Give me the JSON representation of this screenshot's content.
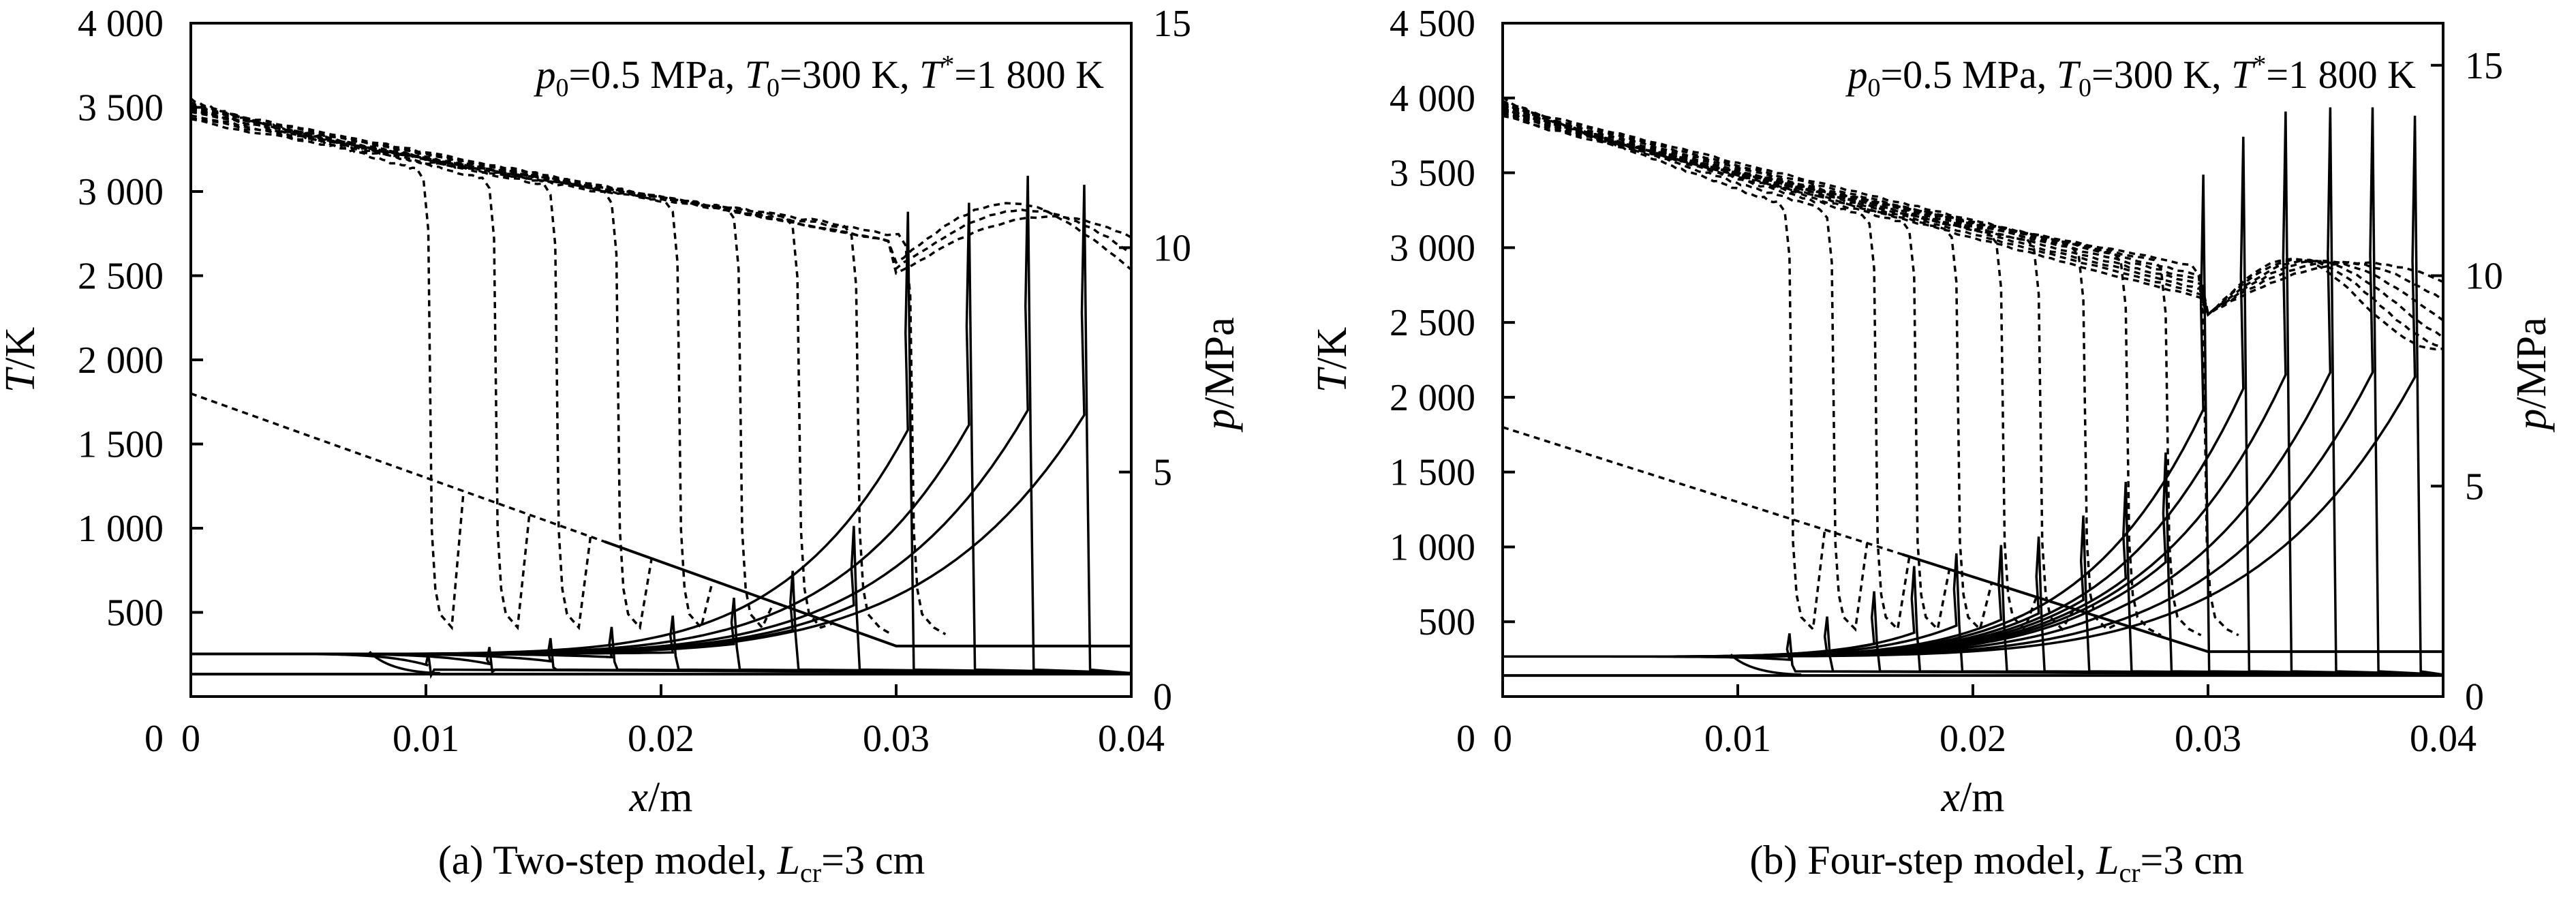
{
  "chart_data": [
    {
      "type": "line",
      "panel": "a",
      "caption_main": "(a) Two-step model, ",
      "caption_L": "L",
      "caption_sub": "cr",
      "caption_rest": "=3 cm",
      "annotation": {
        "p": "p",
        "p_sub": "0",
        "p_val": "=0.5 MPa, ",
        "T0": "T",
        "T0_sub": "0",
        "T0_val": "=300 K, ",
        "Ts": "T",
        "Ts_sup": "*",
        "Ts_val": "=1 800 K"
      },
      "xlabel_var": "x",
      "xlabel_unit": "/m",
      "ylabel_var": "T",
      "ylabel_unit": "/K",
      "y2label_var": "p",
      "y2label_unit": "/MPa",
      "xlim": [
        0,
        0.04
      ],
      "ylim": [
        0,
        4000
      ],
      "y2lim": [
        0,
        15
      ],
      "x_ticks": [
        0,
        0.01,
        0.02,
        0.03,
        0.04
      ],
      "x_tick_labels": [
        "0",
        "0.01",
        "0.02",
        "0.03",
        "0.04"
      ],
      "y_ticks": [
        500,
        1000,
        1500,
        2000,
        2500,
        3000,
        3500,
        4000
      ],
      "y_tick_labels": [
        "500",
        "1 000",
        "1 500",
        "2 000",
        "2 500",
        "3 000",
        "3 500",
        "4 000"
      ],
      "y2_ticks": [
        0,
        5,
        10,
        15
      ],
      "y2_tick_labels": [
        "0",
        "5",
        "10",
        "15"
      ],
      "grid": false,
      "pressure_fronts_x": [
        0.0101,
        0.0127,
        0.0153,
        0.0179,
        0.0205,
        0.0231,
        0.0256,
        0.0282,
        0.0305,
        0.0331,
        0.0356,
        0.038
      ],
      "pressure_peaks_MPa": [
        0.95,
        1.1,
        1.3,
        1.55,
        1.8,
        2.2,
        2.8,
        3.8,
        10.8,
        11.0,
        11.6,
        11.4
      ],
      "temperature_fronts_x": [
        0.0101,
        0.0129,
        0.0155,
        0.0181,
        0.0207,
        0.0233,
        0.0258,
        0.0283,
        0.0306
      ],
      "temperature_burned_K": [
        3070,
        3020,
        2980,
        2930,
        2880,
        2840,
        2790,
        2740,
        2680
      ],
      "temperature_unburned_K": 290,
      "initial_T_profile": {
        "x": [
          0,
          0.03,
          0.04
        ],
        "T": [
          1800,
          300,
          300
        ]
      },
      "initial_p_MPa": 0.5
    },
    {
      "type": "line",
      "panel": "b",
      "caption_main": "(b) Four-step model, ",
      "caption_L": "L",
      "caption_sub": "cr",
      "caption_rest": "=3 cm",
      "annotation": {
        "p": "p",
        "p_sub": "0",
        "p_val": "=0.5 MPa, ",
        "T0": "T",
        "T0_sub": "0",
        "T0_val": "=300 K, ",
        "Ts": "T",
        "Ts_sup": "*",
        "Ts_val": "=1 800 K"
      },
      "xlabel_var": "x",
      "xlabel_unit": "/m",
      "ylabel_var": "T",
      "ylabel_unit": "/K",
      "y2label_var": "p",
      "y2label_unit": "/MPa",
      "xlim": [
        0,
        0.04
      ],
      "ylim": [
        0,
        4500
      ],
      "y2lim": [
        0,
        16
      ],
      "x_ticks": [
        0,
        0.01,
        0.02,
        0.03,
        0.04
      ],
      "x_tick_labels": [
        "0",
        "0.01",
        "0.02",
        "0.03",
        "0.04"
      ],
      "y_ticks": [
        500,
        1000,
        1500,
        2000,
        2500,
        3000,
        3500,
        4000,
        4500
      ],
      "y_tick_labels": [
        "500",
        "1 000",
        "1 500",
        "2 000",
        "2 500",
        "3 000",
        "3 500",
        "4 000",
        "4 500"
      ],
      "y2_ticks": [
        0,
        5,
        10,
        15
      ],
      "y2_tick_labels": [
        "0",
        "5",
        "10",
        "15"
      ],
      "grid": false,
      "pressure_fronts_x": [
        0.0122,
        0.0138,
        0.0158,
        0.0175,
        0.0193,
        0.0212,
        0.0228,
        0.0247,
        0.0265,
        0.0282,
        0.0298,
        0.0315,
        0.0333,
        0.0352,
        0.037,
        0.0388
      ],
      "pressure_peaks_MPa": [
        1.5,
        1.9,
        2.5,
        3.1,
        3.4,
        3.6,
        3.8,
        4.3,
        5.1,
        5.8,
        12.4,
        13.3,
        13.9,
        14.0,
        14.0,
        13.8
      ],
      "temperature_fronts_x": [
        0.0122,
        0.014,
        0.0158,
        0.0175,
        0.0193,
        0.0212,
        0.0228,
        0.0247,
        0.0265,
        0.0282,
        0.0298
      ],
      "temperature_burned_K": [
        3240,
        3200,
        3160,
        3110,
        3070,
        3030,
        2990,
        2950,
        2900,
        2860,
        2820
      ],
      "temperature_unburned_K": 330,
      "initial_T_profile": {
        "x": [
          0,
          0.03,
          0.04
        ],
        "T": [
          1800,
          300,
          300
        ]
      },
      "initial_p_MPa": 0.5
    }
  ]
}
